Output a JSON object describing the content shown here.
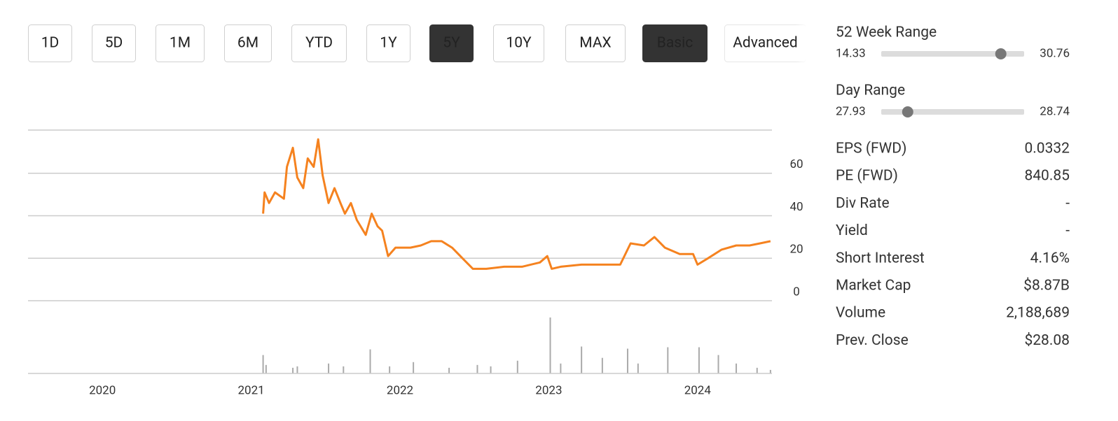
{
  "controls": [
    {
      "label": "1D"
    },
    {
      "label": "5D"
    },
    {
      "label": "1M"
    },
    {
      "label": "6M"
    },
    {
      "label": "YTD"
    },
    {
      "label": "1Y"
    },
    {
      "label": "5Y",
      "active": true
    },
    {
      "label": "10Y"
    },
    {
      "label": "MAX"
    },
    {
      "label": "Basic",
      "active": true
    },
    {
      "label": "Advanced",
      "disabled": true
    }
  ],
  "chart_data": [
    {
      "type": "line",
      "color": "#f5821f",
      "grid": true,
      "xlim": [
        2019.5,
        2024.5
      ],
      "xticks": [
        2020,
        2021,
        2022,
        2023,
        2024
      ],
      "ylim": [
        0,
        80
      ],
      "yticks": [
        0,
        20,
        40,
        60
      ],
      "x": [
        2021.08,
        2021.09,
        2021.12,
        2021.16,
        2021.22,
        2021.24,
        2021.28,
        2021.31,
        2021.35,
        2021.38,
        2021.42,
        2021.45,
        2021.48,
        2021.52,
        2021.56,
        2021.6,
        2021.63,
        2021.67,
        2021.71,
        2021.77,
        2021.81,
        2021.85,
        2021.88,
        2021.92,
        2021.97,
        2022.07,
        2022.14,
        2022.21,
        2022.28,
        2022.35,
        2022.42,
        2022.49,
        2022.58,
        2022.7,
        2022.82,
        2022.94,
        2022.99,
        2023.02,
        2023.08,
        2023.22,
        2023.36,
        2023.48,
        2023.55,
        2023.64,
        2023.71,
        2023.78,
        2023.88,
        2023.97,
        2024.0,
        2024.07,
        2024.16,
        2024.26,
        2024.35,
        2024.42,
        2024.49
      ],
      "values": [
        41,
        51,
        46,
        51,
        48,
        63,
        72,
        58,
        53,
        67,
        63,
        76,
        59,
        46,
        53,
        46,
        41,
        46,
        38,
        31,
        41,
        35,
        33,
        21,
        25,
        25,
        26,
        28,
        28,
        25,
        20,
        15,
        15,
        16,
        16,
        18,
        21,
        15,
        16,
        17,
        17,
        17,
        27,
        26,
        30,
        25,
        22,
        22,
        17,
        20,
        24,
        26,
        26,
        27,
        28
      ]
    },
    {
      "type": "bar",
      "color": "#aaaaaa",
      "x": [
        2021.08,
        2021.1,
        2021.28,
        2021.31,
        2021.52,
        2021.62,
        2021.8,
        2021.93,
        2022.09,
        2022.33,
        2022.52,
        2022.61,
        2022.79,
        2023.01,
        2023.08,
        2023.22,
        2023.36,
        2023.53,
        2023.6,
        2023.8,
        2024.01,
        2024.14,
        2024.26,
        2024.4,
        2024.49
      ],
      "values": [
        26,
        12,
        8,
        10,
        14,
        10,
        34,
        10,
        16,
        8,
        12,
        10,
        18,
        79,
        14,
        38,
        22,
        35,
        14,
        37,
        37,
        26,
        14,
        8,
        5
      ]
    }
  ],
  "ranges": [
    {
      "label": "52 Week Range",
      "low": 14.33,
      "high": 30.76
    },
    {
      "label": "Day Range",
      "low": 27.93,
      "high": 28.74
    }
  ],
  "stats": [
    {
      "label": "EPS (FWD)",
      "value": "0.0332"
    },
    {
      "label": "PE (FWD)",
      "value": "840.85"
    },
    {
      "label": "Div Rate",
      "value": "-"
    },
    {
      "label": "Yield",
      "value": "-"
    },
    {
      "label": "Short Interest",
      "value": "4.16%"
    },
    {
      "label": "Market Cap",
      "value": "$8.87B"
    },
    {
      "label": "Volume",
      "value": "2,188,689"
    },
    {
      "label": "Prev. Close",
      "value": {
        "value": 28.08,
        "label": "$28.08"
      }
    }
  ]
}
